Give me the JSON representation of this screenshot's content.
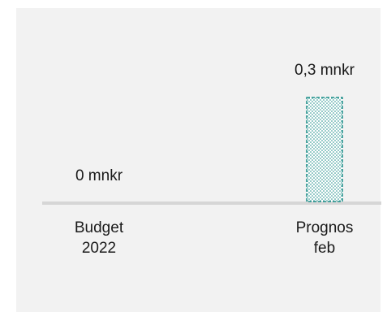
{
  "chart_data": {
    "type": "bar",
    "categories": [
      [
        "Budget",
        "2022"
      ],
      [
        "Prognos",
        "feb"
      ]
    ],
    "values": [
      0,
      0.3
    ],
    "data_labels": [
      "0 mnkr",
      "0,3 mnkr"
    ],
    "unit": "mnkr",
    "title": "",
    "xlabel": "",
    "ylabel": "",
    "ylim": [
      0,
      0.3
    ],
    "grid": false,
    "legend": "none",
    "colors": {
      "bar_outline": "#1f8f8a",
      "bar_dots": "#1f8f8a",
      "bar_fill": "#ffffff",
      "baseline": "#d6d6d6",
      "background": "#f2f2f2"
    }
  }
}
